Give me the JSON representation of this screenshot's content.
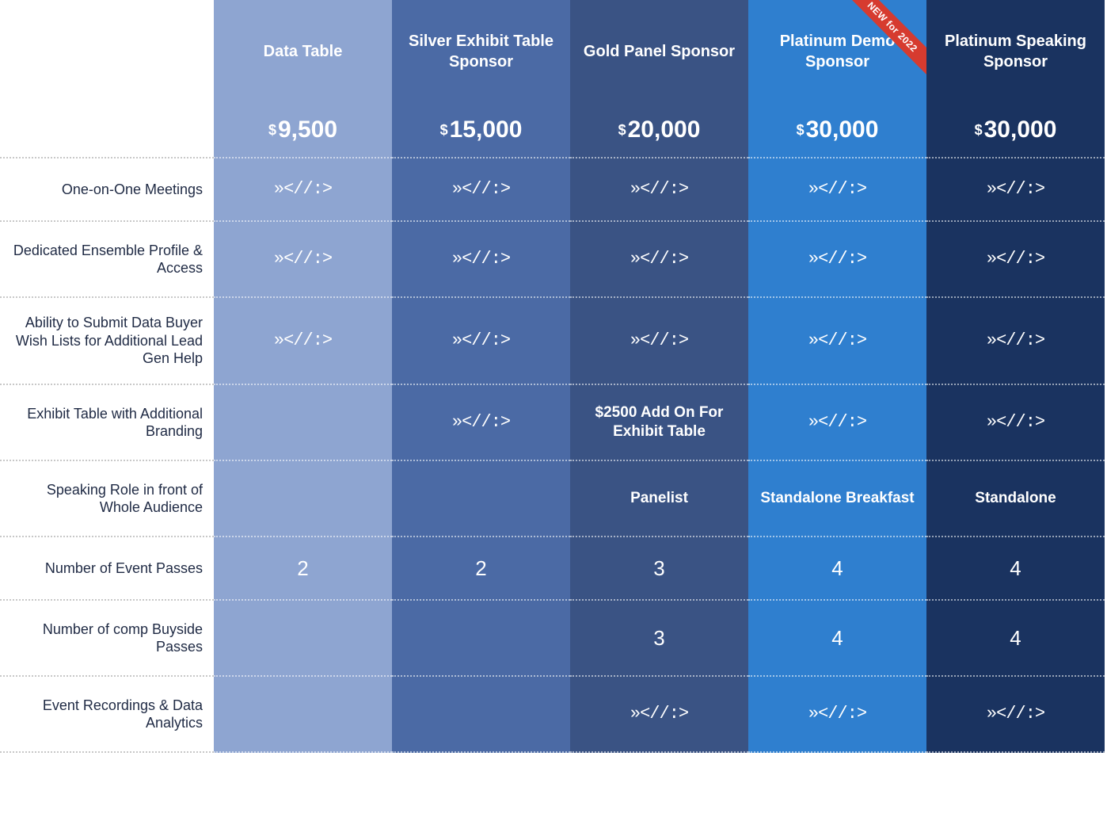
{
  "check_glyph": "»<//:>",
  "ribbon": "NEW for 2022",
  "colors": {
    "c1": "#8ea5d1",
    "c2": "#4b6aa5",
    "c3": "#3a5384",
    "c4": "#2f7fcf",
    "c5": "#1a3360"
  },
  "tiers": [
    {
      "title": "Data Table",
      "price": "9,500",
      "ribbon": false
    },
    {
      "title": "Silver Exhibit Table Sponsor",
      "price": "15,000",
      "ribbon": false
    },
    {
      "title": "Gold Panel Sponsor",
      "price": "20,000",
      "ribbon": false
    },
    {
      "title": "Platinum Demo Sponsor",
      "price": "30,000",
      "ribbon": true
    },
    {
      "title": "Platinum Speaking Sponsor",
      "price": "30,000",
      "ribbon": false
    }
  ],
  "rows": [
    {
      "label": "One-on-One Meetings",
      "h": "h80",
      "cells": [
        {
          "type": "check"
        },
        {
          "type": "check"
        },
        {
          "type": "check"
        },
        {
          "type": "check"
        },
        {
          "type": "check"
        }
      ]
    },
    {
      "label": "Dedicated Ensemble Profile & Access",
      "h": "h96",
      "cells": [
        {
          "type": "check"
        },
        {
          "type": "check"
        },
        {
          "type": "check"
        },
        {
          "type": "check"
        },
        {
          "type": "check"
        }
      ]
    },
    {
      "label": "Ability to Submit Data Buyer Wish Lists for Additional Lead Gen Help",
      "h": "h110",
      "cells": [
        {
          "type": "check"
        },
        {
          "type": "check"
        },
        {
          "type": "check"
        },
        {
          "type": "check"
        },
        {
          "type": "check"
        }
      ]
    },
    {
      "label": "Exhibit Table with Additional Branding",
      "h": "h96",
      "cells": [
        {
          "type": "empty"
        },
        {
          "type": "check"
        },
        {
          "type": "text",
          "value": "$2500 Add On For Exhibit Table"
        },
        {
          "type": "check"
        },
        {
          "type": "check"
        }
      ]
    },
    {
      "label": "Speaking Role in front of Whole Audience",
      "h": "h96",
      "cells": [
        {
          "type": "empty"
        },
        {
          "type": "empty"
        },
        {
          "type": "text",
          "value": "Panelist"
        },
        {
          "type": "text",
          "value": "Standalone Breakfast"
        },
        {
          "type": "text",
          "value": "Standalone"
        }
      ]
    },
    {
      "label": "Number of Event Passes",
      "h": "h80",
      "cells": [
        {
          "type": "num",
          "value": "2"
        },
        {
          "type": "num",
          "value": "2"
        },
        {
          "type": "num",
          "value": "3"
        },
        {
          "type": "num",
          "value": "4"
        },
        {
          "type": "num",
          "value": "4"
        }
      ]
    },
    {
      "label": "Number of comp Buyside Passes",
      "h": "h96",
      "cells": [
        {
          "type": "empty"
        },
        {
          "type": "empty"
        },
        {
          "type": "num",
          "value": "3"
        },
        {
          "type": "num",
          "value": "4"
        },
        {
          "type": "num",
          "value": "4"
        }
      ]
    },
    {
      "label": "Event Recordings & Data Analytics",
      "h": "h96",
      "cells": [
        {
          "type": "empty"
        },
        {
          "type": "empty"
        },
        {
          "type": "check"
        },
        {
          "type": "check"
        },
        {
          "type": "check"
        }
      ]
    }
  ]
}
